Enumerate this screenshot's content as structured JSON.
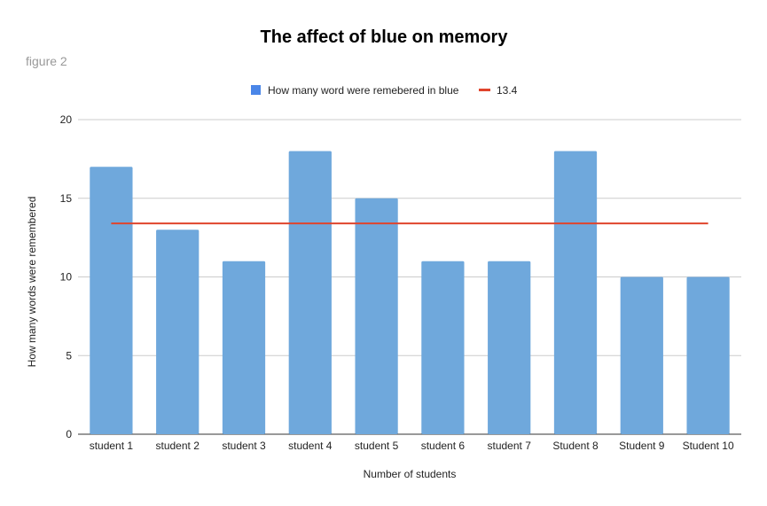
{
  "chart_data": {
    "type": "bar",
    "title": "The affect of blue on memory",
    "subtitle": "figure 2",
    "xlabel": "Number of students",
    "ylabel": "How many words were remembered",
    "categories": [
      "student 1",
      "student 2",
      "student 3",
      "student 4",
      "student 5",
      "student 6",
      "student 7",
      "Student 8",
      "Student 9",
      "Student 10"
    ],
    "series": [
      {
        "name": "How many word were remebered in blue",
        "type": "bar",
        "color": "#6fa8dc",
        "legend_color": "#4a86e8",
        "values": [
          17,
          13,
          11,
          18,
          15,
          11,
          11,
          18,
          10,
          10
        ]
      },
      {
        "name": "13.4",
        "type": "line",
        "color": "#e0442c",
        "values": [
          13.4,
          13.4,
          13.4,
          13.4,
          13.4,
          13.4,
          13.4,
          13.4,
          13.4,
          13.4
        ]
      }
    ],
    "ylim": [
      0,
      20
    ],
    "yticks": [
      0,
      5,
      10,
      15,
      20
    ],
    "grid": true,
    "legend_position": "top"
  }
}
